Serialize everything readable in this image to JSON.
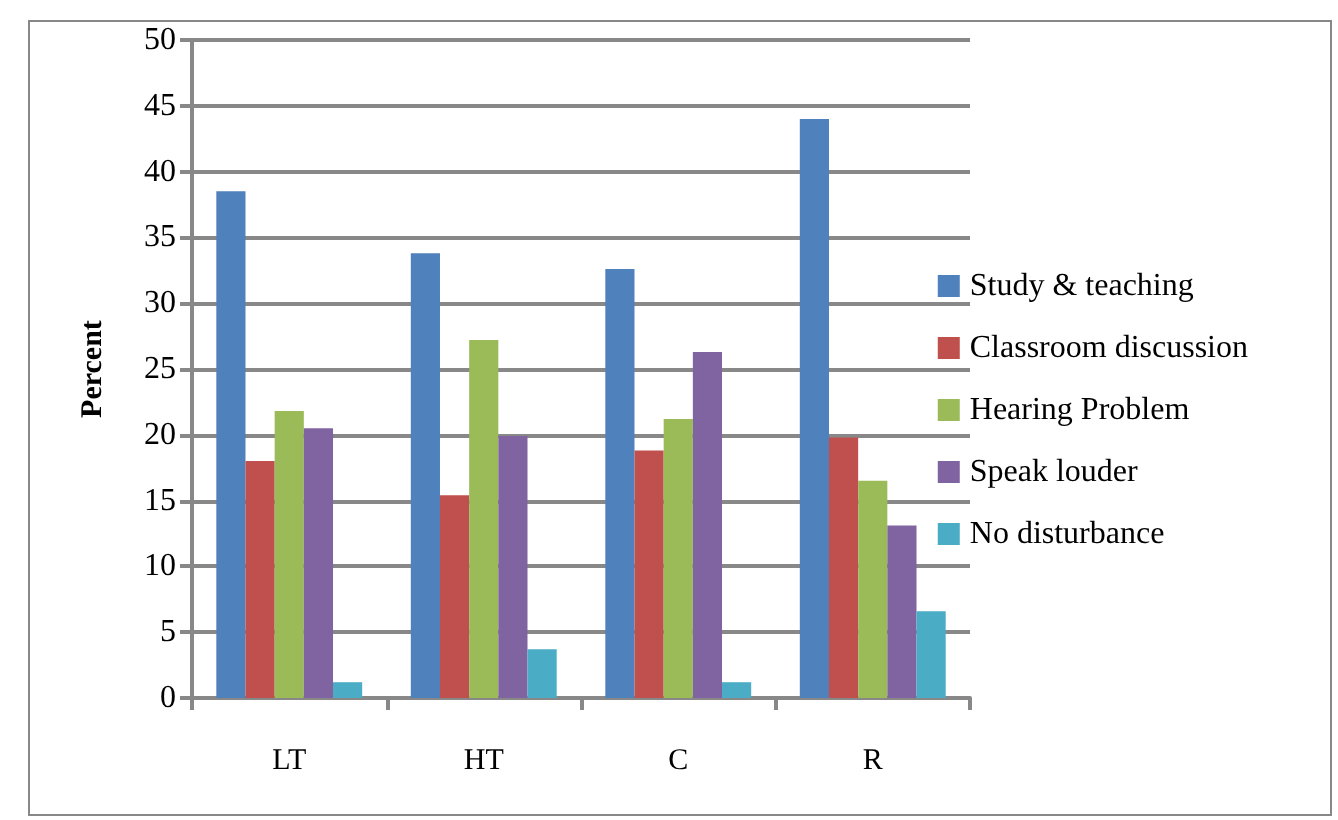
{
  "chart_data": {
    "type": "bar",
    "ylabel": "Percent",
    "categories": [
      "LT",
      "HT",
      "C",
      "R"
    ],
    "series": [
      {
        "name": "Study & teaching",
        "color": "#4f81bd",
        "values": [
          38.5,
          33.8,
          32.6,
          44.0
        ]
      },
      {
        "name": "Classroom discussion",
        "color": "#c0504d",
        "values": [
          18.0,
          15.4,
          18.8,
          19.8
        ]
      },
      {
        "name": "Hearing Problem",
        "color": "#9bbb59",
        "values": [
          21.8,
          27.2,
          21.2,
          16.5
        ]
      },
      {
        "name": "Speak louder",
        "color": "#8064a2",
        "values": [
          20.5,
          19.9,
          26.3,
          13.1
        ]
      },
      {
        "name": "No disturbance",
        "color": "#4bacc6",
        "values": [
          1.2,
          3.7,
          1.2,
          6.6
        ]
      }
    ],
    "ylim": [
      0,
      50
    ],
    "yticks": [
      0,
      5,
      10,
      15,
      20,
      25,
      30,
      35,
      40,
      45,
      50
    ],
    "grid": "y",
    "legend": "right"
  }
}
